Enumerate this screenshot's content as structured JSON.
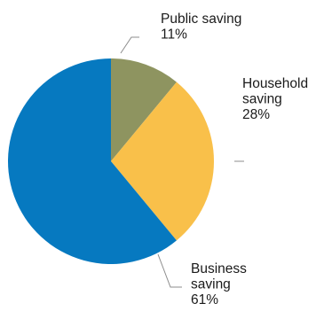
{
  "chart_data": {
    "type": "pie",
    "slices": [
      {
        "name": "Public saving",
        "label_lines": [
          "Public saving"
        ],
        "value": 11,
        "value_label": "11%",
        "color": "#8e9460"
      },
      {
        "name": "Household saving",
        "label_lines": [
          "Household",
          "saving"
        ],
        "value": 28,
        "value_label": "28%",
        "color": "#f9c04a"
      },
      {
        "name": "Business saving",
        "label_lines": [
          "Business",
          "saving"
        ],
        "value": 61,
        "value_label": "61%",
        "color": "#0679c0"
      }
    ],
    "title": "",
    "legend": "none",
    "start_angle": "12 o'clock",
    "direction": "clockwise"
  }
}
